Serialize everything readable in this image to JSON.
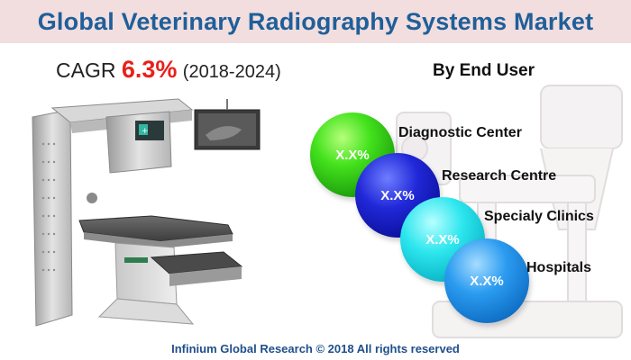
{
  "header": {
    "title": "Global Veterinary Radiography Systems Market"
  },
  "cagr": {
    "prefix": "CAGR",
    "value": "6.3%",
    "period": "(2018-2024)"
  },
  "segment": {
    "heading": "By End User",
    "items": [
      {
        "label": "Diagnostic Center",
        "value": "X.X%",
        "color": "#44e21d"
      },
      {
        "label": "Research Centre",
        "value": "X.X%",
        "color": "#2028d8"
      },
      {
        "label": "Specialy Clinics",
        "value": "X.X%",
        "color": "#2de6ee"
      },
      {
        "label": "Hospitals",
        "value": "X.X%",
        "color": "#2a9bf0"
      }
    ]
  },
  "footer": {
    "text": "Infinium Global Research © 2018 All rights reserved"
  },
  "colors": {
    "title": "#1f5f9a",
    "title_bg": "#f2dede",
    "cagr_value": "#e8211b"
  }
}
